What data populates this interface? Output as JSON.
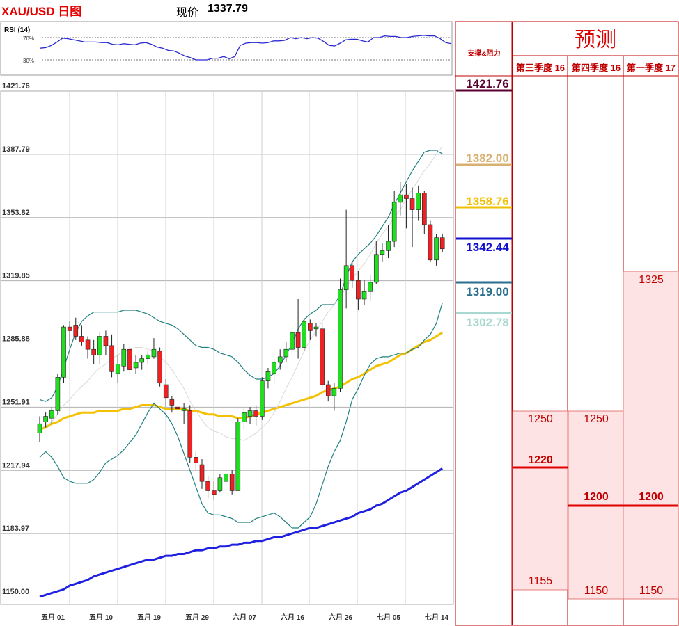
{
  "header": {
    "title": "XAU/USD 日图",
    "price_label": "现价",
    "price_value": "1337.79"
  },
  "rsi": {
    "label": "RSI (14)",
    "levels": [
      "70%",
      "30%"
    ],
    "values": [
      51,
      52,
      56,
      62,
      69,
      68,
      66,
      64,
      62,
      62,
      62,
      61,
      61,
      58,
      57,
      59,
      58,
      57,
      60,
      61,
      58,
      53,
      51,
      47,
      46,
      42,
      37,
      34,
      30,
      30,
      30,
      33,
      33,
      36,
      32,
      36,
      56,
      60,
      61,
      61,
      60,
      61,
      64,
      64,
      65,
      70,
      68,
      70,
      68,
      70,
      69,
      63,
      56,
      55,
      60,
      66,
      67,
      67,
      64,
      62,
      70,
      70,
      73,
      72,
      72,
      70,
      70,
      72,
      73,
      74,
      73,
      73,
      68,
      61,
      59
    ],
    "color": "#2a2ad0"
  },
  "price_axis": {
    "ticks": [
      "1421.76",
      "1387.79",
      "1353.82",
      "1319.85",
      "1285.88",
      "1251.91",
      "1217.94",
      "1183.97",
      "1150.00"
    ]
  },
  "date_axis": {
    "ticks": [
      "五月 01",
      "五月 10",
      "五月 19",
      "五月 29",
      "六月 07",
      "六月 16",
      "六月 26",
      "七月 05",
      "七月 14"
    ]
  },
  "support_resistance": {
    "title": "支撑&阻力",
    "levels": [
      {
        "value": "1421.76",
        "color": "#5a0030"
      },
      {
        "value": "1382.00",
        "color": "#d8b070"
      },
      {
        "value": "1358.76",
        "color": "#f0c000"
      },
      {
        "value": "1342.44",
        "color": "#1010d0"
      },
      {
        "value": "1319.00",
        "color": "#2a6e8e"
      },
      {
        "value": "1302.78",
        "color": "#a8d8d0"
      }
    ]
  },
  "forecast": {
    "title": "预测",
    "columns": [
      {
        "header": "第三季度 16",
        "high": "1250",
        "target": "1220",
        "low": "1155"
      },
      {
        "header": "第四季度 16",
        "high": "1250",
        "target": "1200",
        "low": "1150"
      },
      {
        "header": "第一季度 17",
        "high": "1325",
        "target": "1200",
        "low": "1150"
      }
    ]
  },
  "chart_data": {
    "type": "candlestick",
    "title": "XAU/USD 日图",
    "ylim": [
      1150.0,
      1421.76
    ],
    "x_ticks": [
      "五月 01",
      "五月 10",
      "五月 19",
      "五月 29",
      "六月 07",
      "六月 16",
      "六月 26",
      "七月 05",
      "七月 14"
    ],
    "candles": [
      [
        1238,
        1247,
        1233,
        1243
      ],
      [
        1244,
        1249,
        1241,
        1247
      ],
      [
        1246,
        1252,
        1243,
        1250
      ],
      [
        1250,
        1270,
        1248,
        1268
      ],
      [
        1268,
        1296,
        1265,
        1295
      ],
      [
        1295,
        1298,
        1285,
        1293
      ],
      [
        1296,
        1300,
        1288,
        1290
      ],
      [
        1290,
        1296,
        1285,
        1287
      ],
      [
        1288,
        1290,
        1278,
        1283
      ],
      [
        1283,
        1288,
        1275,
        1280
      ],
      [
        1280,
        1292,
        1275,
        1290
      ],
      [
        1290,
        1293,
        1280,
        1285
      ],
      [
        1285,
        1291,
        1268,
        1271
      ],
      [
        1270,
        1280,
        1265,
        1275
      ],
      [
        1274,
        1286,
        1271,
        1283
      ],
      [
        1283,
        1285,
        1270,
        1272
      ],
      [
        1273,
        1280,
        1270,
        1276
      ],
      [
        1276,
        1280,
        1272,
        1278
      ],
      [
        1278,
        1282,
        1275,
        1280
      ],
      [
        1279,
        1289,
        1278,
        1283
      ],
      [
        1282,
        1284,
        1263,
        1265
      ],
      [
        1264,
        1267,
        1252,
        1257
      ],
      [
        1256,
        1258,
        1249,
        1253
      ],
      [
        1252,
        1255,
        1248,
        1251
      ],
      [
        1250,
        1254,
        1243,
        1251
      ],
      [
        1250,
        1253,
        1222,
        1225
      ],
      [
        1225,
        1228,
        1218,
        1222
      ],
      [
        1221,
        1224,
        1208,
        1212
      ],
      [
        1212,
        1215,
        1203,
        1207
      ],
      [
        1207,
        1212,
        1202,
        1205
      ],
      [
        1207,
        1216,
        1206,
        1214
      ],
      [
        1212,
        1218,
        1208,
        1216
      ],
      [
        1216,
        1218,
        1205,
        1207
      ],
      [
        1207,
        1246,
        1207,
        1244
      ],
      [
        1244,
        1252,
        1240,
        1249
      ],
      [
        1247,
        1252,
        1243,
        1250
      ],
      [
        1250,
        1253,
        1242,
        1247
      ],
      [
        1247,
        1268,
        1245,
        1266
      ],
      [
        1266,
        1273,
        1262,
        1271
      ],
      [
        1270,
        1278,
        1265,
        1276
      ],
      [
        1276,
        1283,
        1272,
        1279
      ],
      [
        1279,
        1287,
        1276,
        1283
      ],
      [
        1283,
        1295,
        1280,
        1292
      ],
      [
        1292,
        1310,
        1278,
        1284
      ],
      [
        1284,
        1300,
        1282,
        1298
      ],
      [
        1297,
        1299,
        1288,
        1293
      ],
      [
        1294,
        1297,
        1290,
        1295
      ],
      [
        1294,
        1297,
        1262,
        1264
      ],
      [
        1264,
        1266,
        1255,
        1258
      ],
      [
        1258,
        1265,
        1250,
        1262
      ],
      [
        1262,
        1321,
        1260,
        1315
      ],
      [
        1315,
        1358,
        1305,
        1328
      ],
      [
        1328,
        1330,
        1316,
        1320
      ],
      [
        1320,
        1325,
        1304,
        1310
      ],
      [
        1310,
        1320,
        1307,
        1314
      ],
      [
        1314,
        1323,
        1309,
        1319
      ],
      [
        1319,
        1341,
        1318,
        1334
      ],
      [
        1334,
        1340,
        1330,
        1336
      ],
      [
        1336,
        1350,
        1332,
        1341
      ],
      [
        1341,
        1368,
        1338,
        1362
      ],
      [
        1362,
        1373,
        1355,
        1366
      ],
      [
        1366,
        1372,
        1348,
        1364
      ],
      [
        1364,
        1370,
        1338,
        1358
      ],
      [
        1358,
        1371,
        1352,
        1367
      ],
      [
        1367,
        1368,
        1345,
        1350
      ],
      [
        1350,
        1352,
        1330,
        1331
      ],
      [
        1331,
        1345,
        1328,
        1343
      ],
      [
        1343,
        1345,
        1335,
        1337
      ]
    ],
    "series": [
      {
        "name": "",
        "color": "#f5c000",
        "values": [
          1240,
          1241,
          1243,
          1244,
          1246,
          1247,
          1248,
          1249,
          1249,
          1249,
          1250,
          1250,
          1250,
          1250,
          1251,
          1251,
          1252,
          1253,
          1253,
          1253,
          1252,
          1251,
          1251,
          1251,
          1251,
          1250,
          1250,
          1249,
          1248,
          1248,
          1247,
          1247,
          1247,
          1246,
          1246,
          1247,
          1248,
          1249,
          1250,
          1251,
          1252,
          1253,
          1254,
          1255,
          1256,
          1257,
          1258,
          1260,
          1261,
          1262,
          1263,
          1265,
          1267,
          1268,
          1270,
          1272,
          1274,
          1275,
          1276,
          1278,
          1280,
          1281,
          1283,
          1285,
          1287,
          1288,
          1290,
          1292
        ]
      },
      {
        "name": "",
        "color": "#2020e0",
        "values": [
          1150,
          1151,
          1152,
          1153,
          1154,
          1156,
          1157,
          1158,
          1159,
          1161,
          1162,
          1163,
          1164,
          1165,
          1166,
          1167,
          1168,
          1169,
          1170,
          1170,
          1171,
          1172,
          1172,
          1173,
          1173,
          1174,
          1175,
          1175,
          1176,
          1176,
          1177,
          1177,
          1178,
          1178,
          1179,
          1179,
          1180,
          1180,
          1181,
          1182,
          1182,
          1183,
          1184,
          1185,
          1186,
          1187,
          1187,
          1188,
          1189,
          1190,
          1191,
          1192,
          1193,
          1195,
          1196,
          1197,
          1199,
          1200,
          1202,
          1204,
          1206,
          1207,
          1209,
          1211,
          1213,
          1215,
          1217,
          1219
        ]
      },
      {
        "name": "",
        "color": "#208080",
        "values": [
          1256,
          1255,
          1257,
          1263,
          1273,
          1283,
          1292,
          1298,
          1301,
          1303,
          1303,
          1303,
          1303,
          1303,
          1304,
          1304,
          1304,
          1303,
          1302,
          1300,
          1298,
          1297,
          1296,
          1294,
          1291,
          1288,
          1285,
          1284,
          1284,
          1283,
          1281,
          1280,
          1279,
          1276,
          1272,
          1269,
          1267,
          1267,
          1268,
          1270,
          1274,
          1280,
          1286,
          1294,
          1299,
          1302,
          1304,
          1307,
          1307,
          1307,
          1312,
          1322,
          1330,
          1334,
          1337,
          1340,
          1344,
          1349,
          1354,
          1361,
          1367,
          1373,
          1379,
          1384,
          1389,
          1390,
          1390,
          1388
        ]
      },
      {
        "name": "",
        "color": "#208080",
        "values": [
          1225,
          1228,
          1225,
          1220,
          1214,
          1212,
          1211,
          1211,
          1211,
          1213,
          1217,
          1222,
          1224,
          1226,
          1229,
          1233,
          1237,
          1243,
          1249,
          1254,
          1251,
          1248,
          1243,
          1236,
          1227,
          1218,
          1209,
          1200,
          1195,
          1194,
          1194,
          1193,
          1192,
          1190,
          1190,
          1190,
          1192,
          1193,
          1194,
          1195,
          1193,
          1190,
          1187,
          1187,
          1190,
          1193,
          1200,
          1210,
          1220,
          1228,
          1234,
          1244,
          1256,
          1262,
          1269,
          1275,
          1278,
          1279,
          1279,
          1280,
          1281,
          1281,
          1283,
          1284,
          1288,
          1291,
          1297,
          1308
        ]
      },
      {
        "name": "",
        "color": "#d8d8d8",
        "values": [
          1240,
          1242,
          1244,
          1248,
          1253,
          1256,
          1260,
          1263,
          1266,
          1270,
          1273,
          1275,
          1278,
          1280,
          1282,
          1283,
          1284,
          1284,
          1283,
          1282,
          1279,
          1276,
          1272,
          1267,
          1262,
          1255,
          1250,
          1245,
          1241,
          1239,
          1238,
          1236,
          1235,
          1235,
          1234,
          1236,
          1238,
          1241,
          1244,
          1249,
          1255,
          1262,
          1268,
          1275,
          1282,
          1288,
          1293,
          1298,
          1303,
          1307,
          1311,
          1316,
          1321,
          1325,
          1329,
          1334,
          1340,
          1345,
          1349,
          1354,
          1358,
          1364,
          1369,
          1374,
          1379,
          1383,
          1388,
          1392
        ]
      }
    ]
  }
}
